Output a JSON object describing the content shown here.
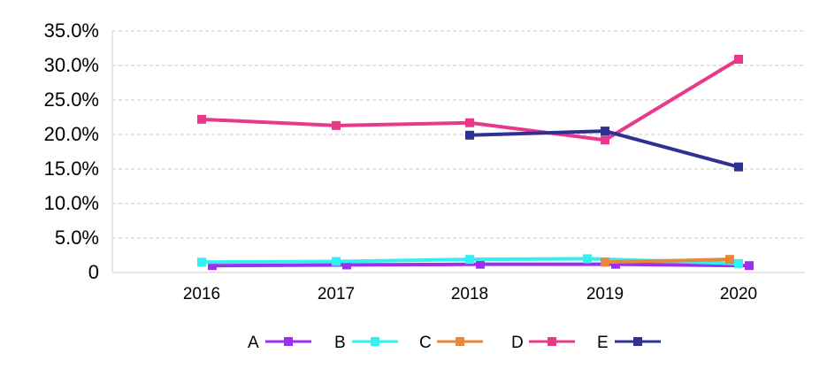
{
  "chart_data": {
    "type": "line",
    "categories": [
      "2016",
      "2017",
      "2018",
      "2019",
      "2020"
    ],
    "ylim": [
      0,
      35
    ],
    "y_ticks": [
      0,
      5,
      10,
      15,
      20,
      25,
      30,
      35
    ],
    "y_tick_labels": [
      "0",
      "5.0%",
      "10.0%",
      "15.0%",
      "20.0%",
      "25.0%",
      "30.0%",
      "35.0%"
    ],
    "grid": true,
    "legend_position": "bottom",
    "series": [
      {
        "name": "A",
        "color": "#9B30F0",
        "values": [
          1.0,
          1.1,
          1.2,
          1.2,
          1.0
        ]
      },
      {
        "name": "B",
        "color": "#33F0F0",
        "values": [
          1.5,
          1.6,
          1.9,
          2.0,
          1.3
        ]
      },
      {
        "name": "C",
        "color": "#E8873A",
        "values": [
          null,
          null,
          null,
          1.5,
          1.9
        ]
      },
      {
        "name": "D",
        "color": "#E8388A",
        "values": [
          22.2,
          21.3,
          21.7,
          19.2,
          30.9
        ]
      },
      {
        "name": "E",
        "color": "#2E3192",
        "values": [
          null,
          null,
          19.9,
          20.5,
          15.3
        ]
      }
    ]
  }
}
